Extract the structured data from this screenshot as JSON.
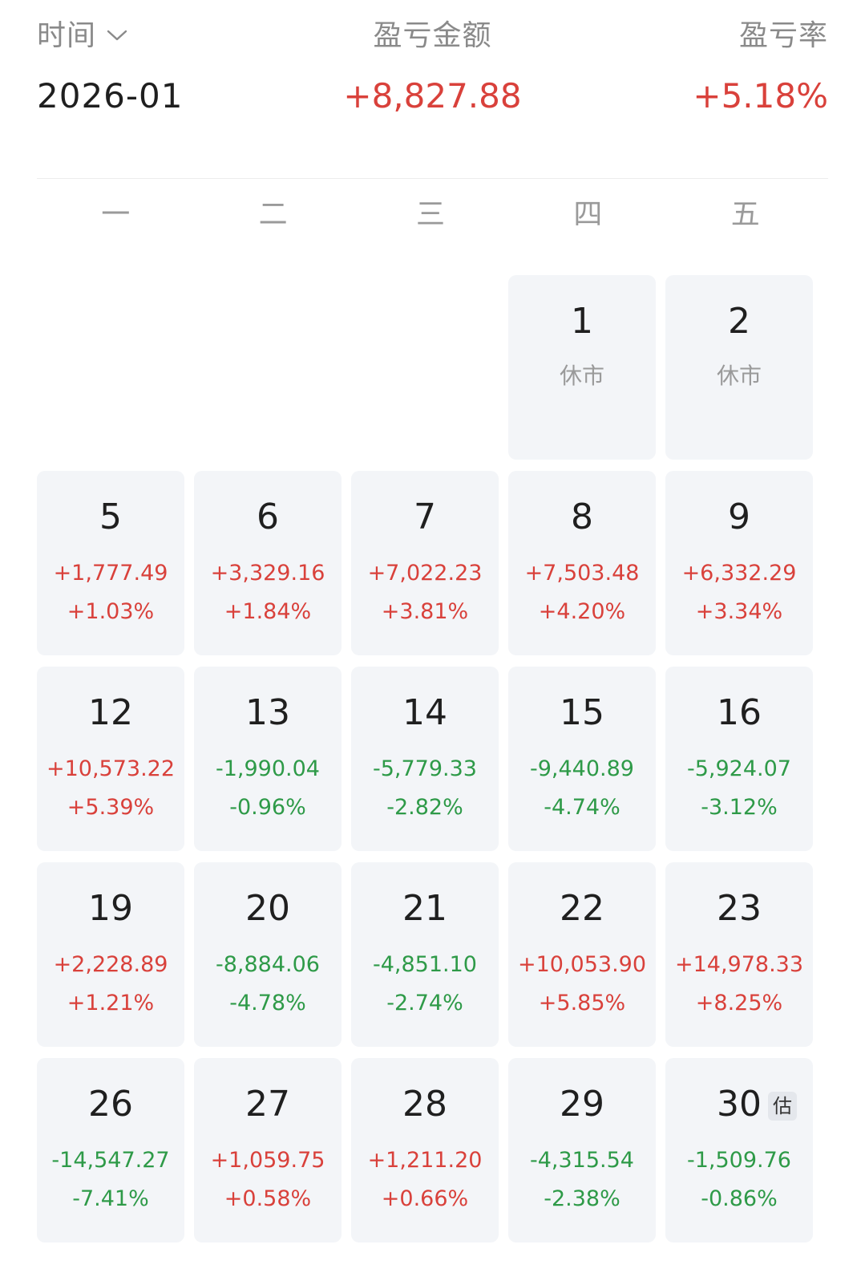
{
  "summary": {
    "time_label": "时间",
    "amount_label": "盈亏金额",
    "rate_label": "盈亏率",
    "month": "2026-01",
    "amount": "+8,827.88",
    "rate": "+5.18%"
  },
  "icons": {
    "time_dropdown": "chevron-down-icon"
  },
  "colors": {
    "positive": "#d9413b",
    "negative": "#2e9a48",
    "cell_bg": "#f3f5f8"
  },
  "weekdays": [
    "一",
    "二",
    "三",
    "四",
    "五"
  ],
  "days": [
    {
      "empty": true
    },
    {
      "empty": true
    },
    {
      "empty": true
    },
    {
      "day": "1",
      "closed": "休市"
    },
    {
      "day": "2",
      "closed": "休市"
    },
    {
      "day": "5",
      "amount": "+1,777.49",
      "pct": "+1.03%",
      "sign": "pos"
    },
    {
      "day": "6",
      "amount": "+3,329.16",
      "pct": "+1.84%",
      "sign": "pos"
    },
    {
      "day": "7",
      "amount": "+7,022.23",
      "pct": "+3.81%",
      "sign": "pos"
    },
    {
      "day": "8",
      "amount": "+7,503.48",
      "pct": "+4.20%",
      "sign": "pos"
    },
    {
      "day": "9",
      "amount": "+6,332.29",
      "pct": "+3.34%",
      "sign": "pos"
    },
    {
      "day": "12",
      "amount": "+10,573.22",
      "pct": "+5.39%",
      "sign": "pos"
    },
    {
      "day": "13",
      "amount": "-1,990.04",
      "pct": "-0.96%",
      "sign": "neg"
    },
    {
      "day": "14",
      "amount": "-5,779.33",
      "pct": "-2.82%",
      "sign": "neg"
    },
    {
      "day": "15",
      "amount": "-9,440.89",
      "pct": "-4.74%",
      "sign": "neg"
    },
    {
      "day": "16",
      "amount": "-5,924.07",
      "pct": "-3.12%",
      "sign": "neg"
    },
    {
      "day": "19",
      "amount": "+2,228.89",
      "pct": "+1.21%",
      "sign": "pos"
    },
    {
      "day": "20",
      "amount": "-8,884.06",
      "pct": "-4.78%",
      "sign": "neg"
    },
    {
      "day": "21",
      "amount": "-4,851.10",
      "pct": "-2.74%",
      "sign": "neg"
    },
    {
      "day": "22",
      "amount": "+10,053.90",
      "pct": "+5.85%",
      "sign": "pos"
    },
    {
      "day": "23",
      "amount": "+14,978.33",
      "pct": "+8.25%",
      "sign": "pos"
    },
    {
      "day": "26",
      "amount": "-14,547.27",
      "pct": "-7.41%",
      "sign": "neg"
    },
    {
      "day": "27",
      "amount": "+1,059.75",
      "pct": "+0.58%",
      "sign": "pos"
    },
    {
      "day": "28",
      "amount": "+1,211.20",
      "pct": "+0.66%",
      "sign": "pos"
    },
    {
      "day": "29",
      "amount": "-4,315.54",
      "pct": "-2.38%",
      "sign": "neg"
    },
    {
      "day": "30",
      "amount": "-1,509.76",
      "pct": "-0.86%",
      "sign": "neg",
      "badge": "估"
    }
  ]
}
